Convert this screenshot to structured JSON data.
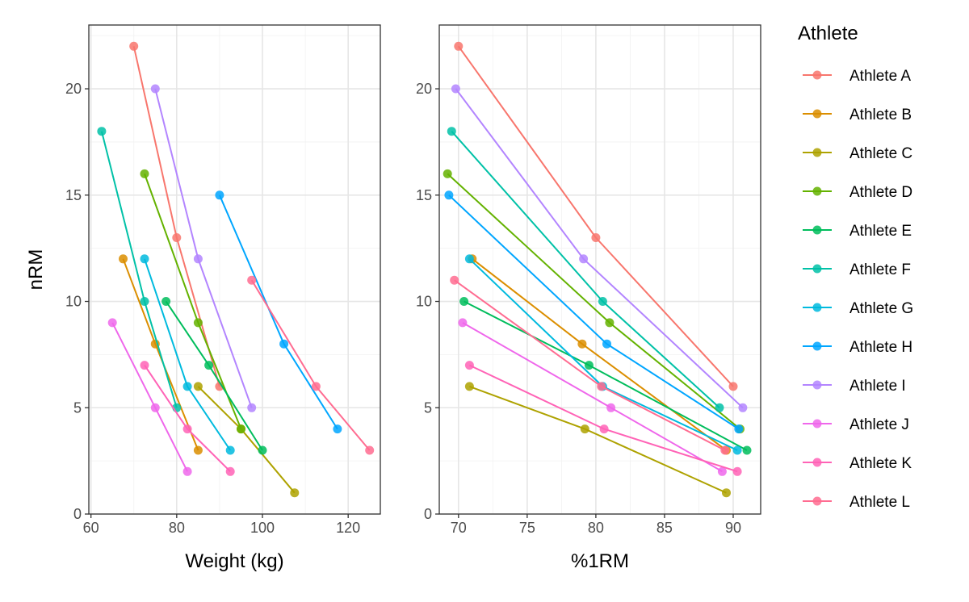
{
  "legend": {
    "title": "Athlete",
    "position": "right"
  },
  "colors": {
    "Athlete A": "#F8766D",
    "Athlete B": "#DB8E00",
    "Athlete C": "#AEA200",
    "Athlete D": "#64B200",
    "Athlete E": "#00BD5C",
    "Athlete F": "#00C1A7",
    "Athlete G": "#00BADE",
    "Athlete H": "#00A6FF",
    "Athlete I": "#B385FF",
    "Athlete J": "#EF67EB",
    "Athlete K": "#FF63B6",
    "Athlete L": "#FF6C91"
  },
  "chart_data": [
    {
      "type": "line",
      "xlabel": "Weight (kg)",
      "ylabel": "nRM",
      "xlim": [
        59.5,
        127.5
      ],
      "ylim": [
        0,
        23
      ],
      "xticks": [
        60,
        80,
        100,
        120
      ],
      "yticks": [
        0,
        5,
        10,
        15,
        20
      ],
      "grid": true,
      "series": [
        {
          "name": "Athlete A",
          "x": [
            70,
            80,
            90
          ],
          "y": [
            22,
            13,
            6
          ]
        },
        {
          "name": "Athlete B",
          "x": [
            67.5,
            75,
            85
          ],
          "y": [
            12,
            8,
            3
          ]
        },
        {
          "name": "Athlete C",
          "x": [
            85,
            95,
            107.5
          ],
          "y": [
            6,
            4,
            1
          ]
        },
        {
          "name": "Athlete D",
          "x": [
            72.5,
            85,
            95
          ],
          "y": [
            16,
            9,
            4
          ]
        },
        {
          "name": "Athlete E",
          "x": [
            77.5,
            87.5,
            100
          ],
          "y": [
            10,
            7,
            3
          ]
        },
        {
          "name": "Athlete F",
          "x": [
            62.5,
            72.5,
            80
          ],
          "y": [
            18,
            10,
            5
          ]
        },
        {
          "name": "Athlete G",
          "x": [
            72.5,
            82.5,
            92.5
          ],
          "y": [
            12,
            6,
            3
          ]
        },
        {
          "name": "Athlete H",
          "x": [
            90,
            105,
            117.5
          ],
          "y": [
            15,
            8,
            4
          ]
        },
        {
          "name": "Athlete I",
          "x": [
            75,
            85,
            97.5
          ],
          "y": [
            20,
            12,
            5
          ]
        },
        {
          "name": "Athlete J",
          "x": [
            65,
            75,
            82.5
          ],
          "y": [
            9,
            5,
            2
          ]
        },
        {
          "name": "Athlete K",
          "x": [
            72.5,
            82.5,
            92.5
          ],
          "y": [
            7,
            4,
            2
          ]
        },
        {
          "name": "Athlete L",
          "x": [
            97.5,
            112.5,
            125
          ],
          "y": [
            11,
            6,
            3
          ]
        }
      ]
    },
    {
      "type": "line",
      "xlabel": "%1RM",
      "ylabel": "",
      "xlim": [
        68.6,
        92.0
      ],
      "ylim": [
        0,
        23
      ],
      "xticks": [
        70,
        75,
        80,
        85,
        90
      ],
      "yticks": [
        0,
        5,
        10,
        15,
        20
      ],
      "grid": true,
      "series": [
        {
          "name": "Athlete A",
          "x": [
            70.0,
            80.0,
            90.0
          ],
          "y": [
            22,
            13,
            6
          ]
        },
        {
          "name": "Athlete B",
          "x": [
            71.0,
            79.0,
            89.5
          ],
          "y": [
            12,
            8,
            3
          ]
        },
        {
          "name": "Athlete C",
          "x": [
            70.8,
            79.2,
            89.5
          ],
          "y": [
            6,
            4,
            1
          ]
        },
        {
          "name": "Athlete D",
          "x": [
            69.2,
            81.0,
            90.5
          ],
          "y": [
            16,
            9,
            4
          ]
        },
        {
          "name": "Athlete E",
          "x": [
            70.4,
            79.5,
            91.0
          ],
          "y": [
            10,
            7,
            3
          ]
        },
        {
          "name": "Athlete F",
          "x": [
            69.5,
            80.5,
            89.0
          ],
          "y": [
            18,
            10,
            5
          ]
        },
        {
          "name": "Athlete G",
          "x": [
            70.8,
            80.5,
            90.3
          ],
          "y": [
            12,
            6,
            3
          ]
        },
        {
          "name": "Athlete H",
          "x": [
            69.3,
            80.8,
            90.4
          ],
          "y": [
            15,
            8,
            4
          ]
        },
        {
          "name": "Athlete I",
          "x": [
            69.8,
            79.1,
            90.7
          ],
          "y": [
            20,
            12,
            5
          ]
        },
        {
          "name": "Athlete J",
          "x": [
            70.3,
            81.1,
            89.2
          ],
          "y": [
            9,
            5,
            2
          ]
        },
        {
          "name": "Athlete K",
          "x": [
            70.8,
            80.6,
            90.3
          ],
          "y": [
            7,
            4,
            2
          ]
        },
        {
          "name": "Athlete L",
          "x": [
            69.7,
            80.4,
            89.4
          ],
          "y": [
            11,
            6,
            3
          ]
        }
      ]
    }
  ]
}
